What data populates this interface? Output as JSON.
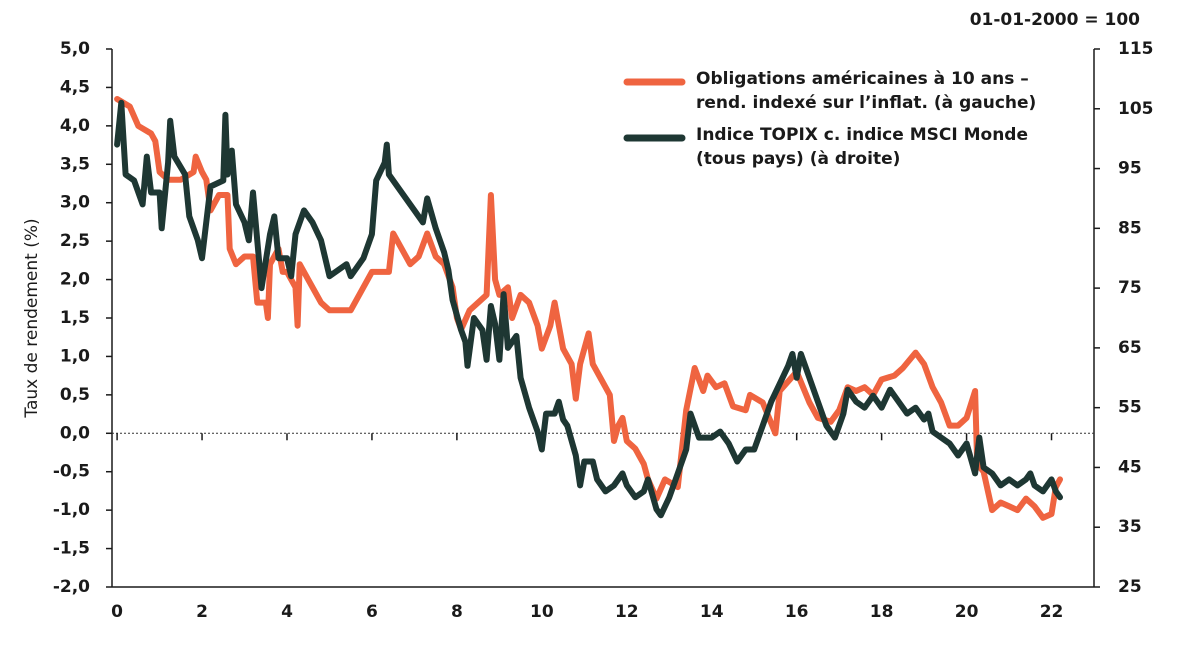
{
  "chart_data": {
    "type": "line",
    "y_label": "Taux de rendement (%)",
    "y2_label": "01-01-2000 = 100",
    "legend": "top-right",
    "xlim": [
      -0.12,
      23
    ],
    "xticks": [
      0,
      2,
      4,
      6,
      8,
      10,
      12,
      14,
      16,
      18,
      20,
      22
    ],
    "ylim": [
      -2,
      5
    ],
    "yticks": [
      {
        "value": -2,
        "label": "-2,0"
      },
      {
        "value": -1.5,
        "label": "-1,5"
      },
      {
        "value": -1,
        "label": "-1,0"
      },
      {
        "value": -0.5,
        "label": "-0,5"
      },
      {
        "value": 0,
        "label": "0,0"
      },
      {
        "value": 0.5,
        "label": "0,5"
      },
      {
        "value": 1,
        "label": "1,0"
      },
      {
        "value": 1.5,
        "label": "1,5"
      },
      {
        "value": 2,
        "label": "2,0"
      },
      {
        "value": 2.5,
        "label": "2,5"
      },
      {
        "value": 3,
        "label": "3,0"
      },
      {
        "value": 3.5,
        "label": "3,5"
      },
      {
        "value": 4,
        "label": "4,0"
      },
      {
        "value": 4.5,
        "label": "4,5"
      },
      {
        "value": 5,
        "label": "5,0"
      }
    ],
    "y2lim": [
      25,
      115
    ],
    "y2ticks": [
      25,
      35,
      45,
      55,
      65,
      75,
      85,
      95,
      105,
      115
    ],
    "series": [
      {
        "name": [
          "Obligations américaines à 10 ans –",
          "rend. indexé sur l’inflat. (à gauche)"
        ],
        "color": "#ef6440",
        "axis": "y",
        "x": [
          0,
          0.3,
          0.5,
          0.8,
          0.9,
          1.0,
          1.2,
          1.5,
          1.8,
          1.85,
          2.0,
          2.1,
          2.2,
          2.4,
          2.6,
          2.65,
          2.8,
          3.0,
          3.2,
          3.3,
          3.5,
          3.55,
          3.6,
          3.8,
          3.9,
          4.0,
          4.2,
          4.25,
          4.3,
          4.5,
          4.8,
          5.0,
          5.5,
          5.8,
          6.0,
          6.4,
          6.5,
          6.7,
          6.9,
          7.1,
          7.3,
          7.5,
          7.7,
          7.9,
          8.0,
          8.1,
          8.3,
          8.5,
          8.7,
          8.8,
          8.9,
          9.0,
          9.2,
          9.3,
          9.5,
          9.7,
          9.9,
          10.0,
          10.2,
          10.3,
          10.5,
          10.7,
          10.8,
          10.9,
          11.1,
          11.2,
          11.4,
          11.6,
          11.7,
          11.8,
          11.9,
          12.0,
          12.2,
          12.4,
          12.5,
          12.7,
          12.9,
          13.2,
          13.4,
          13.6,
          13.8,
          13.9,
          14.1,
          14.3,
          14.5,
          14.8,
          14.9,
          15.2,
          15.5,
          15.6,
          16.0,
          16.3,
          16.5,
          16.8,
          17.0,
          17.2,
          17.4,
          17.6,
          17.8,
          18.0,
          18.3,
          18.5,
          18.8,
          19.0,
          19.2,
          19.4,
          19.6,
          19.8,
          20.0,
          20.2,
          20.25,
          20.4,
          20.6,
          20.8,
          21.0,
          21.2,
          21.4,
          21.6,
          21.8,
          22.0,
          22.1,
          22.2
        ],
        "values": [
          4.35,
          4.25,
          4.0,
          3.9,
          3.8,
          3.4,
          3.3,
          3.3,
          3.4,
          3.6,
          3.4,
          3.3,
          2.9,
          3.1,
          3.1,
          2.4,
          2.2,
          2.3,
          2.3,
          1.7,
          1.7,
          1.5,
          2.2,
          2.4,
          2.1,
          2.1,
          1.9,
          1.4,
          2.2,
          2.0,
          1.7,
          1.6,
          1.6,
          1.9,
          2.1,
          2.1,
          2.6,
          2.4,
          2.2,
          2.3,
          2.6,
          2.3,
          2.2,
          1.9,
          1.5,
          1.35,
          1.6,
          1.7,
          1.8,
          3.1,
          2.0,
          1.8,
          1.9,
          1.5,
          1.8,
          1.7,
          1.4,
          1.1,
          1.4,
          1.7,
          1.1,
          0.9,
          0.45,
          0.9,
          1.3,
          0.9,
          0.7,
          0.5,
          -0.1,
          0.1,
          0.2,
          -0.1,
          -0.2,
          -0.4,
          -0.6,
          -0.85,
          -0.6,
          -0.7,
          0.3,
          0.85,
          0.55,
          0.75,
          0.6,
          0.65,
          0.35,
          0.3,
          0.5,
          0.4,
          0.0,
          0.55,
          0.8,
          0.4,
          0.2,
          0.15,
          0.3,
          0.6,
          0.55,
          0.6,
          0.5,
          0.7,
          0.75,
          0.85,
          1.05,
          0.9,
          0.6,
          0.4,
          0.1,
          0.1,
          0.2,
          0.55,
          -0.4,
          -0.5,
          -1.0,
          -0.9,
          -0.95,
          -1.0,
          -0.85,
          -0.95,
          -1.1,
          -1.05,
          -0.7,
          -0.6
        ]
      },
      {
        "name": [
          "Indice TOPIX c. indice MSCI Monde",
          "(tous pays) (à droite)"
        ],
        "color": "#1e3733",
        "axis": "y2",
        "x": [
          0,
          0.1,
          0.2,
          0.4,
          0.6,
          0.7,
          0.8,
          1.0,
          1.05,
          1.2,
          1.25,
          1.35,
          1.6,
          1.7,
          1.9,
          2.0,
          2.2,
          2.5,
          2.55,
          2.6,
          2.7,
          2.8,
          3.0,
          3.1,
          3.2,
          3.4,
          3.6,
          3.7,
          3.8,
          4.0,
          4.1,
          4.2,
          4.4,
          4.6,
          4.8,
          5.0,
          5.2,
          5.4,
          5.5,
          5.8,
          6.0,
          6.1,
          6.3,
          6.35,
          6.4,
          6.6,
          7.0,
          7.2,
          7.3,
          7.5,
          7.7,
          7.8,
          7.9,
          8.1,
          8.2,
          8.25,
          8.4,
          8.6,
          8.7,
          8.8,
          8.9,
          9.0,
          9.1,
          9.2,
          9.4,
          9.5,
          9.7,
          9.9,
          10.0,
          10.1,
          10.3,
          10.4,
          10.5,
          10.6,
          10.8,
          10.9,
          11.0,
          11.2,
          11.3,
          11.5,
          11.7,
          11.9,
          12.0,
          12.2,
          12.4,
          12.5,
          12.7,
          12.8,
          13.0,
          13.2,
          13.4,
          13.5,
          13.7,
          14.0,
          14.2,
          14.4,
          14.6,
          14.8,
          15.0,
          15.2,
          15.4,
          15.6,
          15.8,
          15.9,
          16.0,
          16.1,
          16.3,
          16.5,
          16.7,
          16.9,
          17.1,
          17.2,
          17.4,
          17.6,
          17.8,
          18.0,
          18.2,
          18.4,
          18.6,
          18.8,
          19.0,
          19.1,
          19.2,
          19.4,
          19.6,
          19.8,
          20.0,
          20.2,
          20.3,
          20.4,
          20.6,
          20.8,
          21.0,
          21.2,
          21.4,
          21.5,
          21.6,
          21.8,
          22.0,
          22.1,
          22.2
        ],
        "values": [
          99,
          106,
          94,
          93,
          89,
          97,
          91,
          91,
          85,
          96,
          103,
          97,
          94,
          87,
          83,
          80,
          92,
          93,
          104,
          94,
          98,
          89,
          86,
          83,
          91,
          75,
          84,
          87,
          80,
          80,
          77,
          84,
          88,
          86,
          83,
          77,
          78,
          79,
          77,
          80,
          84,
          93,
          96,
          99,
          94,
          92,
          88,
          86,
          90,
          85,
          81,
          78,
          73,
          68,
          66,
          62,
          70,
          68,
          63,
          72,
          69,
          63,
          74,
          65,
          67,
          60,
          55,
          51,
          48,
          54,
          54,
          56,
          53,
          52,
          47,
          42,
          46,
          46,
          43,
          41,
          42,
          44,
          42,
          40,
          41,
          43,
          38,
          37,
          40,
          44,
          48,
          54,
          50,
          50,
          51,
          49,
          46,
          48,
          48,
          52,
          56,
          59,
          62,
          64,
          60,
          64,
          60,
          56,
          52,
          50,
          54,
          58,
          56,
          55,
          57,
          55,
          58,
          56,
          54,
          55,
          53,
          54,
          51,
          50,
          49,
          47,
          49,
          44,
          50,
          45,
          44,
          42,
          43,
          42,
          43,
          44,
          42,
          41,
          43,
          41,
          40
        ]
      }
    ]
  }
}
